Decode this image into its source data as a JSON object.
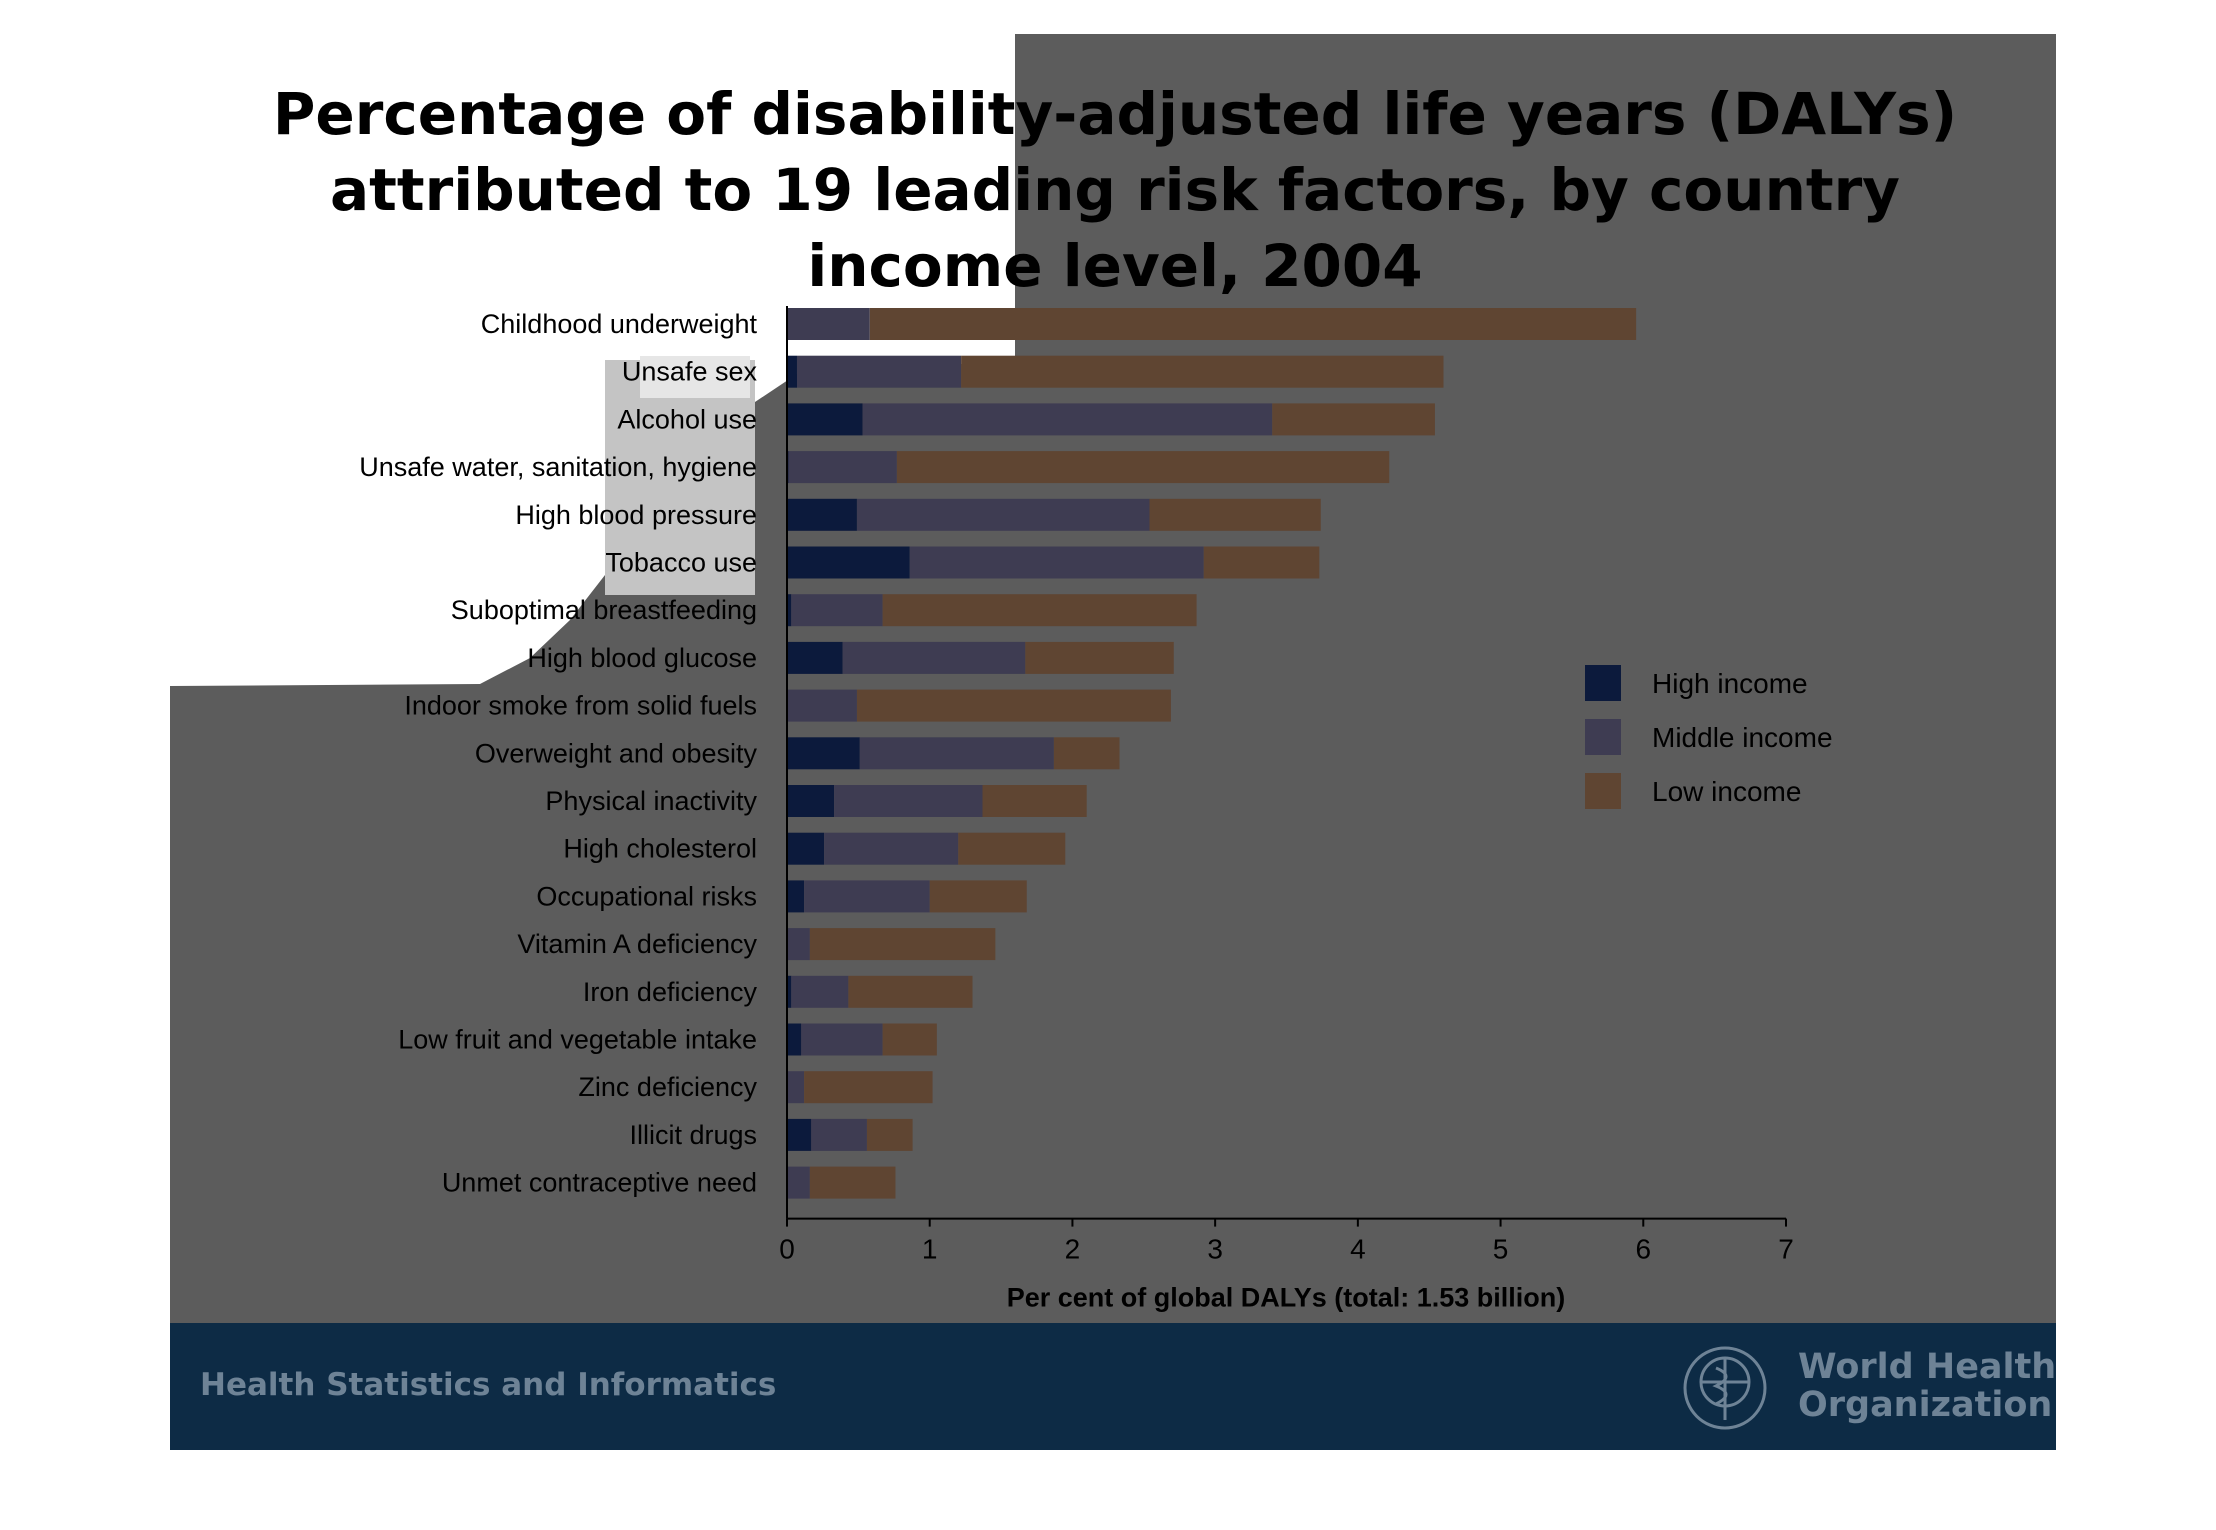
{
  "title": "Percentage of disability-adjusted life years (DALYs)\nattributed to 19 leading risk factors, by country\nincome level, 2004",
  "footer": {
    "section": "Health Statistics and Informatics",
    "org_line1": "World Health",
    "org_line2": "Organization"
  },
  "colors": {
    "high_income": "#0c1a3c",
    "middle_income": "#3e3c52",
    "low_income": "#5f4532",
    "slide_background": "#5c5c5c",
    "footer_band": "#0d2b45"
  },
  "chart_data": {
    "type": "bar",
    "orientation": "horizontal",
    "stacked": true,
    "categories": [
      "Childhood underweight",
      "Unsafe sex",
      "Alcohol use",
      "Unsafe water, sanitation, hygiene",
      "High blood pressure",
      "Tobacco use",
      "Suboptimal breastfeeding",
      "High blood glucose",
      "Indoor smoke from solid fuels",
      "Overweight and obesity",
      "Physical inactivity",
      "High cholesterol",
      "Occupational risks",
      "Vitamin A deficiency",
      "Iron deficiency",
      "Low fruit and vegetable intake",
      "Zinc deficiency",
      "Illicit drugs",
      "Unmet contraceptive need"
    ],
    "series": [
      {
        "name": "High income",
        "values": [
          0.0,
          0.07,
          0.53,
          0.01,
          0.49,
          0.86,
          0.03,
          0.39,
          0.0,
          0.51,
          0.33,
          0.26,
          0.12,
          0.0,
          0.03,
          0.1,
          0.0,
          0.17,
          0.0
        ]
      },
      {
        "name": "Middle income",
        "values": [
          0.58,
          1.15,
          2.87,
          0.76,
          2.05,
          2.06,
          0.64,
          1.28,
          0.49,
          1.36,
          1.04,
          0.94,
          0.88,
          0.16,
          0.4,
          0.57,
          0.12,
          0.39,
          0.16
        ]
      },
      {
        "name": "Low income",
        "values": [
          5.37,
          3.38,
          1.14,
          3.45,
          1.2,
          0.81,
          2.2,
          1.04,
          2.2,
          0.46,
          0.73,
          0.75,
          0.68,
          1.3,
          0.87,
          0.38,
          0.9,
          0.32,
          0.6
        ]
      }
    ],
    "xlabel": "Per cent of global DALYs (total: 1.53 billion)",
    "xlim": [
      0,
      7
    ],
    "xticks": [
      "0",
      "1",
      "2",
      "3",
      "4",
      "5",
      "6",
      "7"
    ],
    "legend": [
      "High income",
      "Middle income",
      "Low income"
    ],
    "legend_position": "right",
    "grid": false
  }
}
